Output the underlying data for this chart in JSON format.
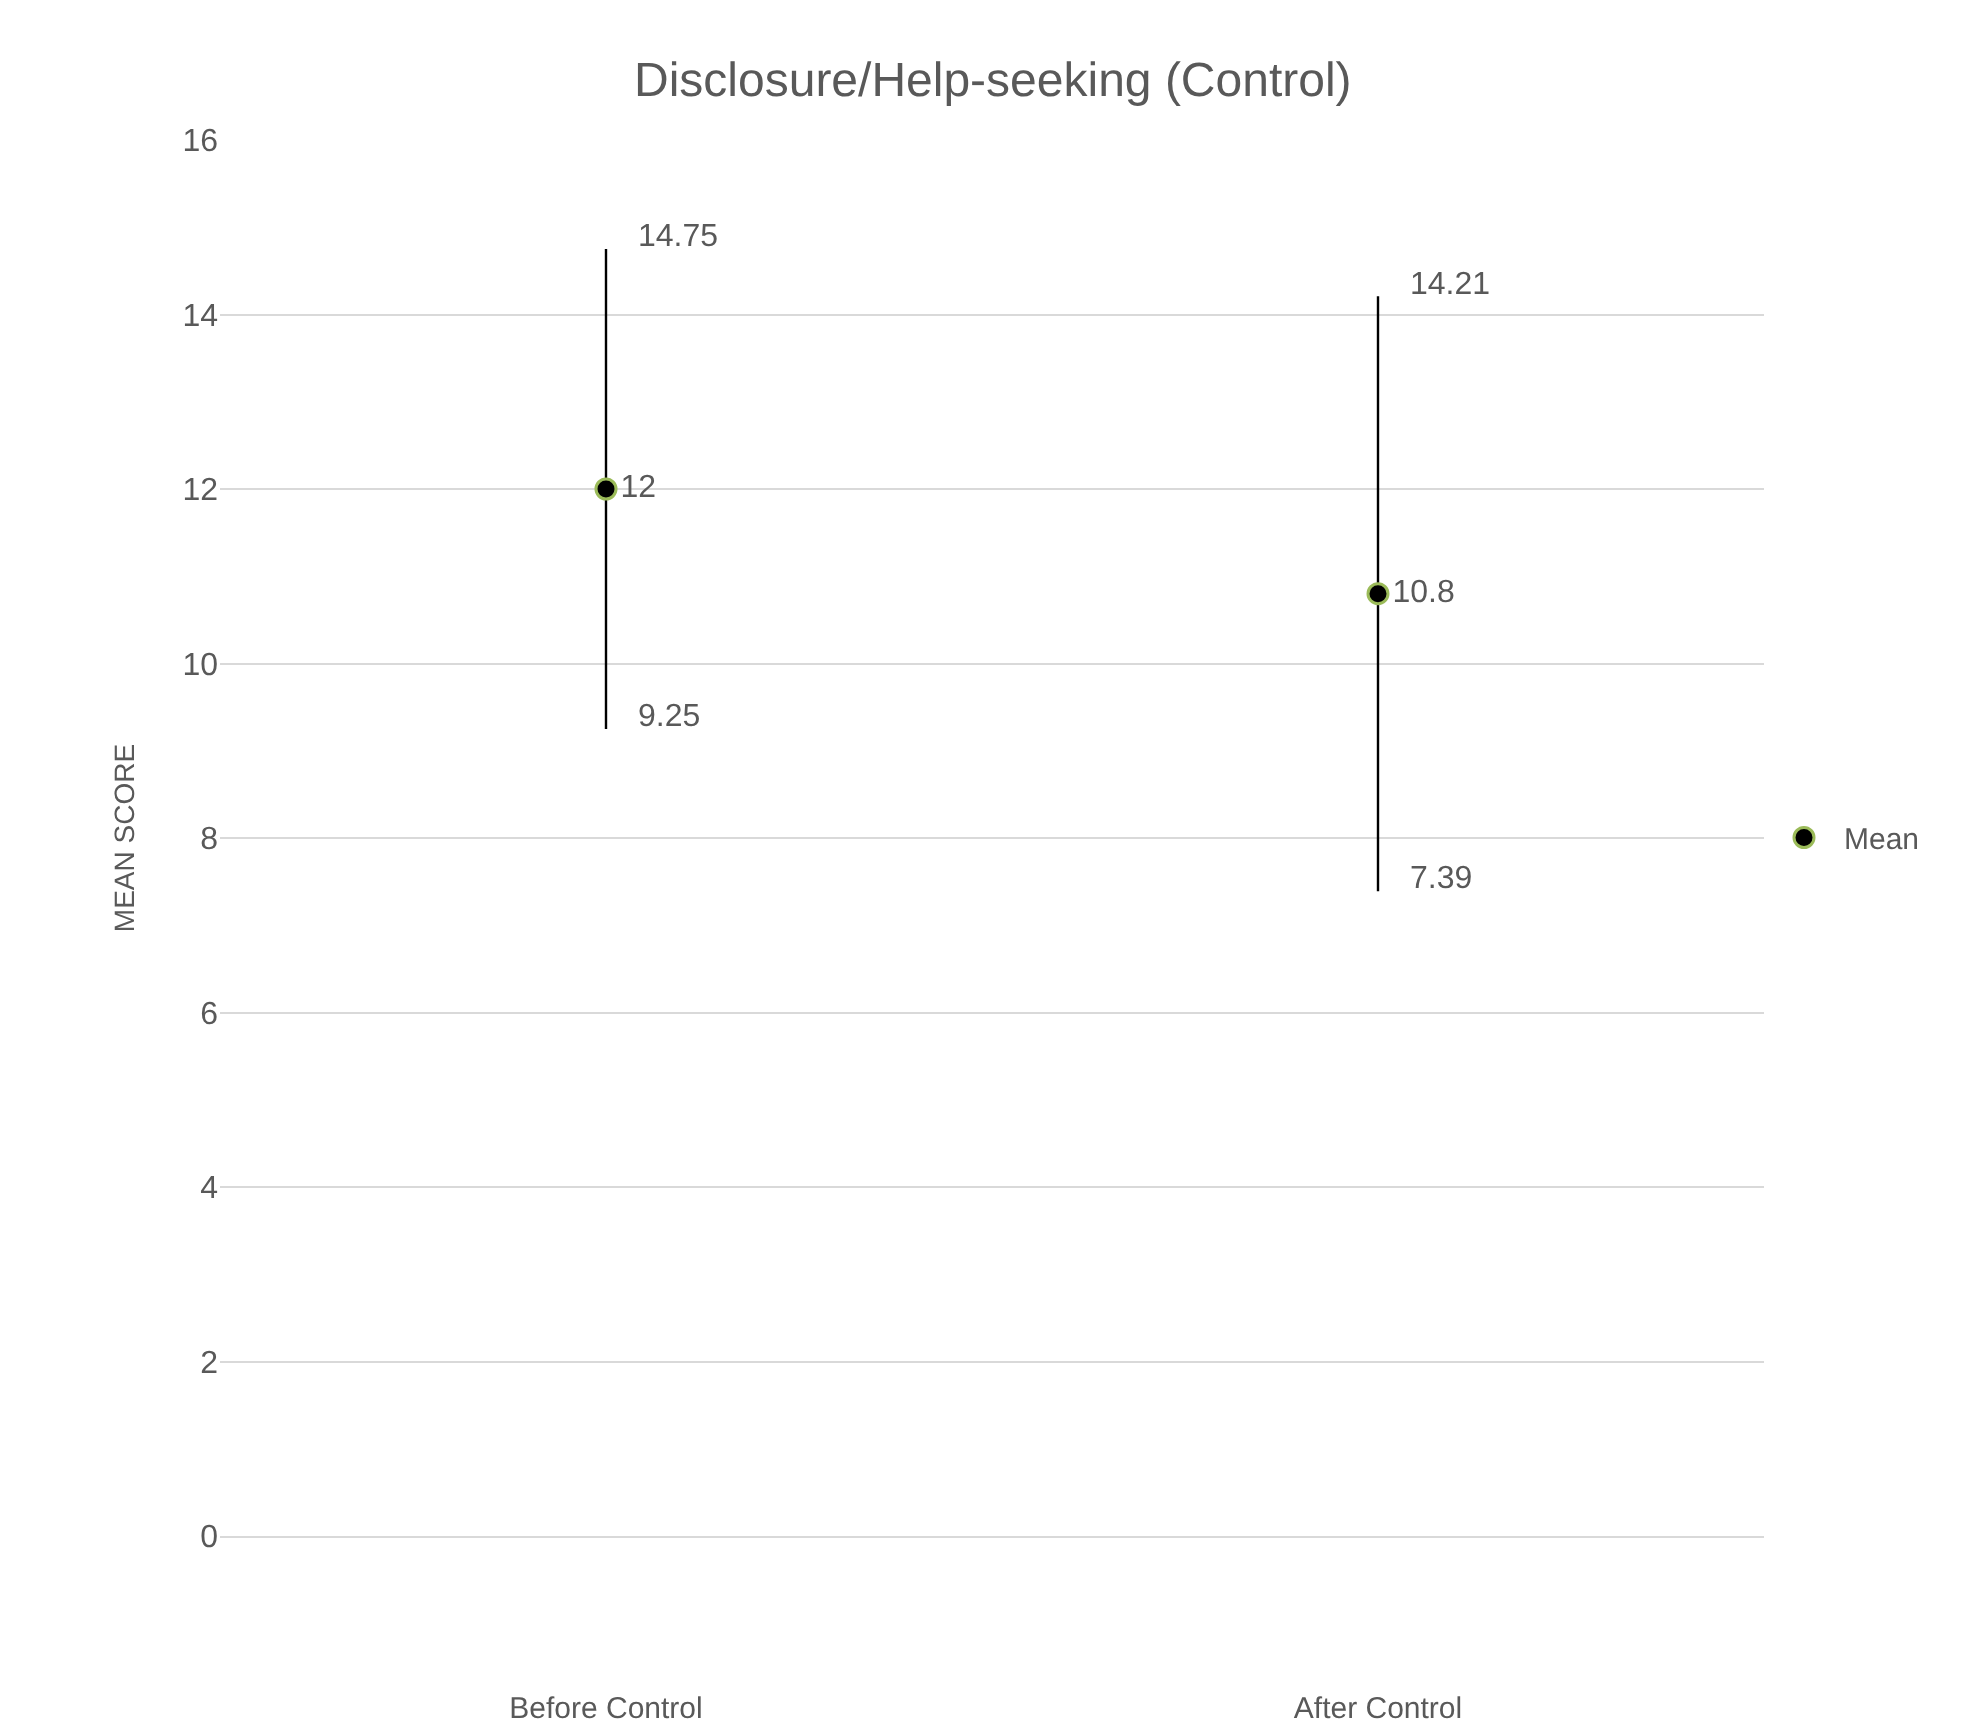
{
  "chart_data": {
    "type": "scatter",
    "title": "Disclosure/Help-seeking (Control)",
    "ylabel": "MEAN SCORE",
    "categories": [
      "Before Control",
      "After Control"
    ],
    "series": [
      {
        "name": "Mean",
        "color": "#000000",
        "values": [
          12,
          10.8
        ],
        "errors": [
          [
            9.25,
            14.75
          ],
          [
            7.39,
            14.21
          ]
        ]
      }
    ],
    "data_labels": true,
    "annotations": [
      {
        "text": "14.75",
        "x": "Before Control",
        "y": 14.75
      },
      {
        "text": "9.25",
        "x": "Before Control",
        "y": 9.25
      },
      {
        "text": "14.21",
        "x": "After Control",
        "y": 14.21
      },
      {
        "text": "7.39",
        "x": "After Control",
        "y": 7.39
      }
    ],
    "ylim": [
      0,
      16
    ],
    "yticks": [
      0,
      2,
      4,
      6,
      8,
      10,
      12,
      14,
      16
    ],
    "grid": "y",
    "legend": "right",
    "marker": "circle"
  }
}
